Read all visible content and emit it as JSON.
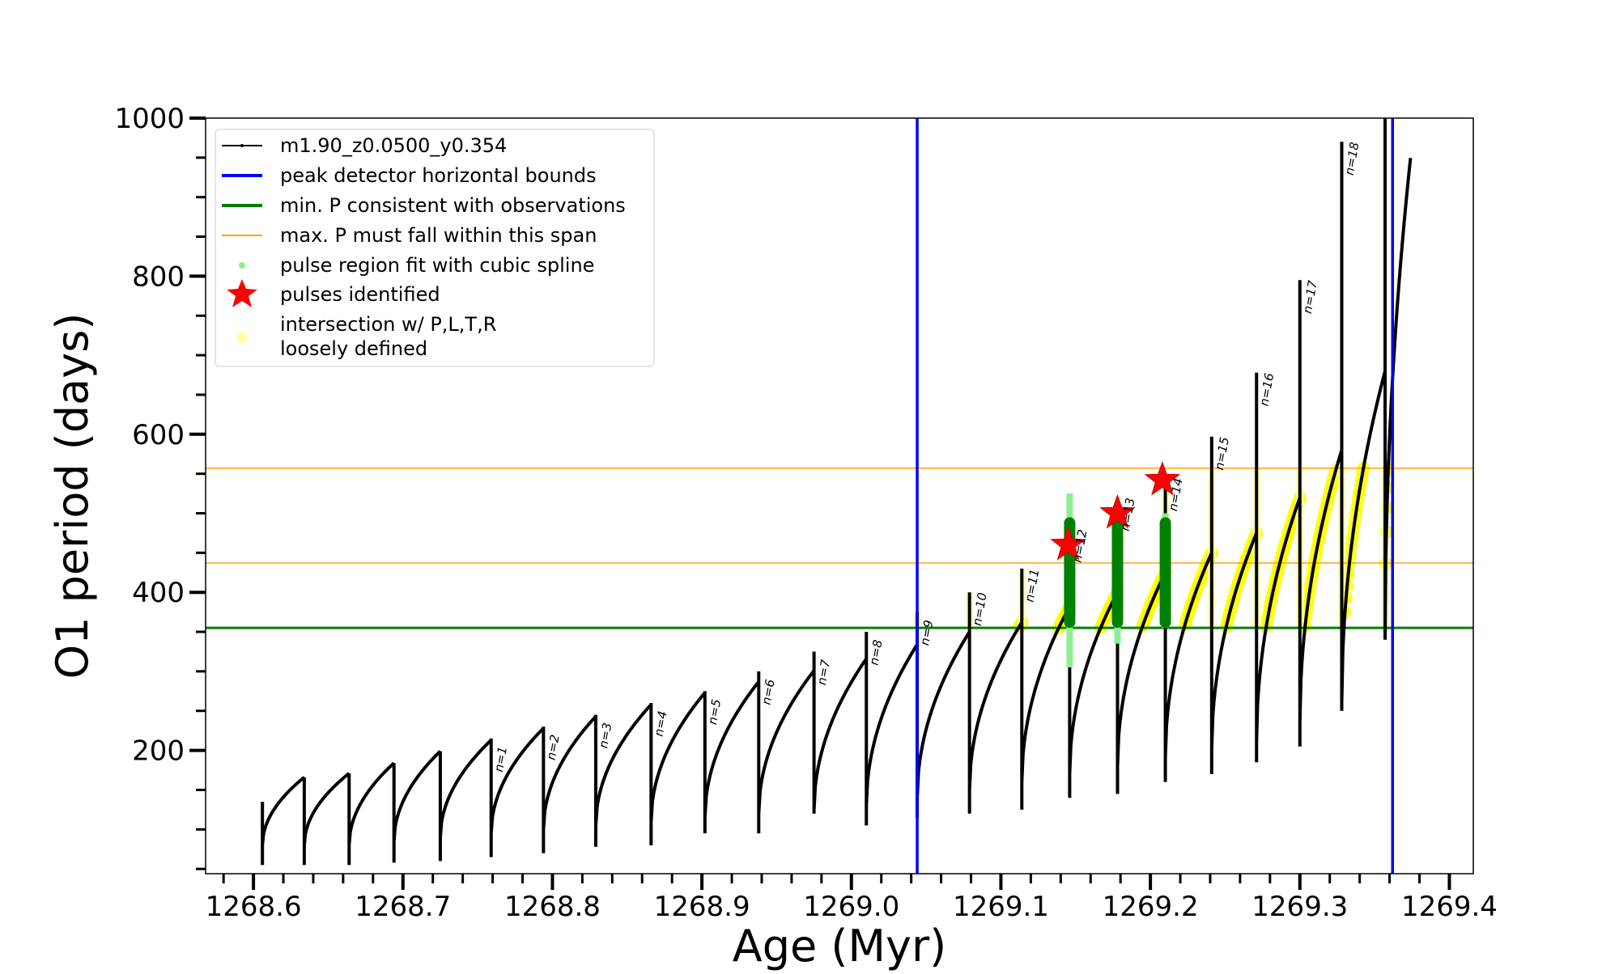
{
  "chart_data": {
    "type": "line",
    "xlabel": "Age (Myr)",
    "ylabel": "O1 period (days)",
    "xlim": [
      1268.568,
      1269.416
    ],
    "ylim": [
      44,
      1000
    ],
    "xticks": [
      "1268.6",
      "1268.7",
      "1268.8",
      "1268.9",
      "1269.0",
      "1269.1",
      "1269.2",
      "1269.3",
      "1269.4"
    ],
    "xtick_values": [
      1268.6,
      1268.7,
      1268.8,
      1268.9,
      1269.0,
      1269.1,
      1269.2,
      1269.3,
      1269.4
    ],
    "yticks": [
      "200",
      "400",
      "600",
      "800",
      "1000"
    ],
    "ytick_values": [
      200,
      400,
      600,
      800,
      1000
    ],
    "legend_placement": "upper-left",
    "legend": [
      {
        "label": "m1.90_z0.0500_y0.354",
        "color": "#000000",
        "kind": "line-dot"
      },
      {
        "label": "peak detector horizontal bounds",
        "color": "#0000ff",
        "kind": "line"
      },
      {
        "label": "min. P consistent with observations",
        "color": "#008000",
        "kind": "line"
      },
      {
        "label": "max. P must fall within this span",
        "color": "#ffa500",
        "kind": "thin-line"
      },
      {
        "label": "pulse region fit with cubic spline",
        "color": "#90ee90",
        "kind": "dot"
      },
      {
        "label": "pulses identified",
        "color": "#ff0000",
        "kind": "star"
      },
      {
        "label": "intersection w/ P,L,T,R",
        "label2": "loosely defined",
        "color": "#ffffb0",
        "kind": "circle"
      }
    ],
    "series": {
      "name": "m1.90_z0.0500_y0.354",
      "drop_ages": [
        1268.606,
        1268.634,
        1268.664,
        1268.694,
        1268.725,
        1268.759,
        1268.794,
        1268.829,
        1268.866,
        1268.902,
        1268.938,
        1268.975,
        1269.01,
        1269.044,
        1269.079,
        1269.114,
        1269.146,
        1269.178,
        1269.21,
        1269.241,
        1269.271,
        1269.3,
        1269.328,
        1269.357
      ],
      "cycle_min": [
        80,
        80,
        80,
        85,
        90,
        95,
        100,
        105,
        110,
        115,
        120,
        125,
        130,
        140,
        150,
        160,
        170,
        180,
        190,
        200,
        210,
        235,
        260,
        340
      ],
      "cycle_peak": [
        166,
        171,
        184,
        199,
        213,
        228,
        243,
        258,
        273,
        287,
        301,
        316,
        334,
        350,
        362,
        382,
        400,
        425,
        450,
        475,
        520,
        580,
        680,
        870
      ],
      "spike_top": [
        135,
        166,
        171,
        184,
        199,
        215,
        230,
        245,
        260,
        275,
        300,
        325,
        350,
        375,
        400,
        430,
        480,
        520,
        545,
        597,
        678,
        795,
        970,
        1000
      ],
      "drop_floor": [
        55,
        55,
        55,
        58,
        60,
        65,
        70,
        78,
        80,
        95,
        95,
        120,
        105,
        115,
        120,
        125,
        140,
        145,
        160,
        170,
        185,
        205,
        250,
        345
      ],
      "final_end_age": 1269.374
    },
    "vlines": {
      "color": "#0000ff",
      "x": [
        1269.044,
        1269.362
      ]
    },
    "hline_min": {
      "color": "#008000",
      "y": 355
    },
    "hlines_span": {
      "color": "#ffa500",
      "y": [
        437,
        557
      ]
    },
    "pulse_labels": [
      "n=1",
      "n=2",
      "n=3",
      "n=4",
      "n=5",
      "n=6",
      "n=7",
      "n=8",
      "n=9",
      "n=10",
      "n=11",
      "n=12",
      "n=13",
      "n=14",
      "n=15",
      "n=16",
      "n=17",
      "n=18"
    ],
    "pulse_label_first_drop_index": 5,
    "green_pulse_regions": [
      {
        "age": 1269.146,
        "low": 355,
        "high": 495,
        "spline_low": 305,
        "spline_high": 525
      },
      {
        "age": 1269.178,
        "low": 355,
        "high": 495,
        "spline_low": 335,
        "spline_high": 505
      },
      {
        "age": 1269.21,
        "low": 355,
        "high": 495,
        "spline_low": 355,
        "spline_high": 500
      }
    ],
    "pulses_identified": [
      {
        "age": 1269.145,
        "period": 460
      },
      {
        "age": 1269.178,
        "period": 500
      },
      {
        "age": 1269.208,
        "period": 542
      }
    ],
    "yellow_region": {
      "min_age": 1269.04,
      "low": 355,
      "high": 557
    }
  }
}
